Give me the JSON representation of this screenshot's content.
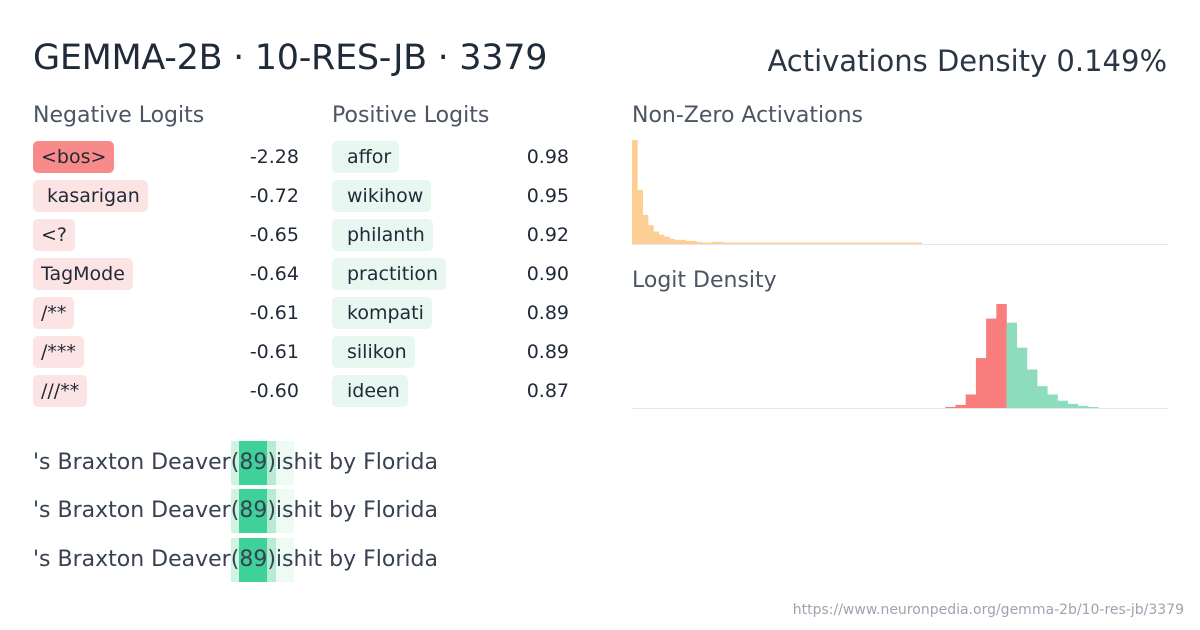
{
  "header": {
    "title": "GEMMA-2B · 10-RES-JB · 3379",
    "density_label": "Activations Density 0.149%"
  },
  "negative_logits": {
    "heading": "Negative Logits",
    "items": [
      {
        "token": "<bos>",
        "value": "-2.28"
      },
      {
        "token": " kasarigan",
        "value": "-0.72"
      },
      {
        "token": "<?",
        "value": "-0.65"
      },
      {
        "token": "TagMode",
        "value": "-0.64"
      },
      {
        "token": "/**",
        "value": "-0.61"
      },
      {
        "token": "/***",
        "value": "-0.61"
      },
      {
        "token": "///**",
        "value": "-0.60"
      }
    ]
  },
  "positive_logits": {
    "heading": "Positive Logits",
    "items": [
      {
        "token": "affor",
        "value": "0.98"
      },
      {
        "token": "wikihow",
        "value": "0.95"
      },
      {
        "token": "philanth",
        "value": "0.92"
      },
      {
        "token": "practition",
        "value": "0.90"
      },
      {
        "token": "kompati",
        "value": "0.89"
      },
      {
        "token": "silikon",
        "value": "0.89"
      },
      {
        "token": "ideen",
        "value": "0.87"
      }
    ]
  },
  "snippets": [
    {
      "before": "'s Braxton Deaver",
      "h1": " (",
      "h2": "89",
      "h3": ")",
      "h4": " is",
      "after": " hit by Florida"
    },
    {
      "before": "'s Braxton Deaver",
      "h1": " (",
      "h2": "89",
      "h3": ")",
      "h4": " is",
      "after": " hit by Florida"
    },
    {
      "before": "'s Braxton Deaver",
      "h1": " (",
      "h2": "89",
      "h3": ")",
      "h4": " is",
      "after": " hit by Florida"
    }
  ],
  "footer": {
    "url": "https://www.neuronpedia.org/gemma-2b/10-res-jb/3379"
  },
  "chart_data": [
    {
      "type": "bar",
      "title": "Non-Zero Activations",
      "color": "#fdcf94",
      "values": [
        100,
        52,
        28,
        18,
        12,
        9,
        7,
        5,
        4,
        4,
        3,
        3,
        2,
        1,
        1,
        2,
        2,
        1,
        1,
        1,
        1,
        1,
        1,
        1,
        1,
        1,
        1,
        1,
        1,
        1,
        1,
        1,
        1,
        1,
        1,
        1,
        1,
        1,
        1,
        1,
        1,
        1,
        1,
        1,
        1,
        1,
        1,
        1,
        1,
        1,
        1,
        1,
        1,
        1,
        0,
        0,
        0,
        0,
        0,
        0,
        0,
        0,
        0,
        0,
        0,
        0,
        0,
        0,
        0,
        0,
        0,
        0,
        0,
        0,
        0,
        0,
        0,
        0,
        0,
        0,
        0,
        0,
        0,
        0,
        0,
        0,
        0,
        0,
        0,
        0,
        0,
        0,
        0,
        0,
        0,
        0,
        0,
        0,
        0,
        0
      ]
    },
    {
      "type": "bar",
      "title": "Logit Density",
      "negative_color": "#f87e7e",
      "positive_color": "#8ddcbe",
      "negative_values": [
        1,
        3,
        13,
        48,
        86,
        100
      ],
      "positive_values": [
        82,
        58,
        37,
        21,
        13,
        7,
        4,
        2,
        1
      ]
    }
  ]
}
